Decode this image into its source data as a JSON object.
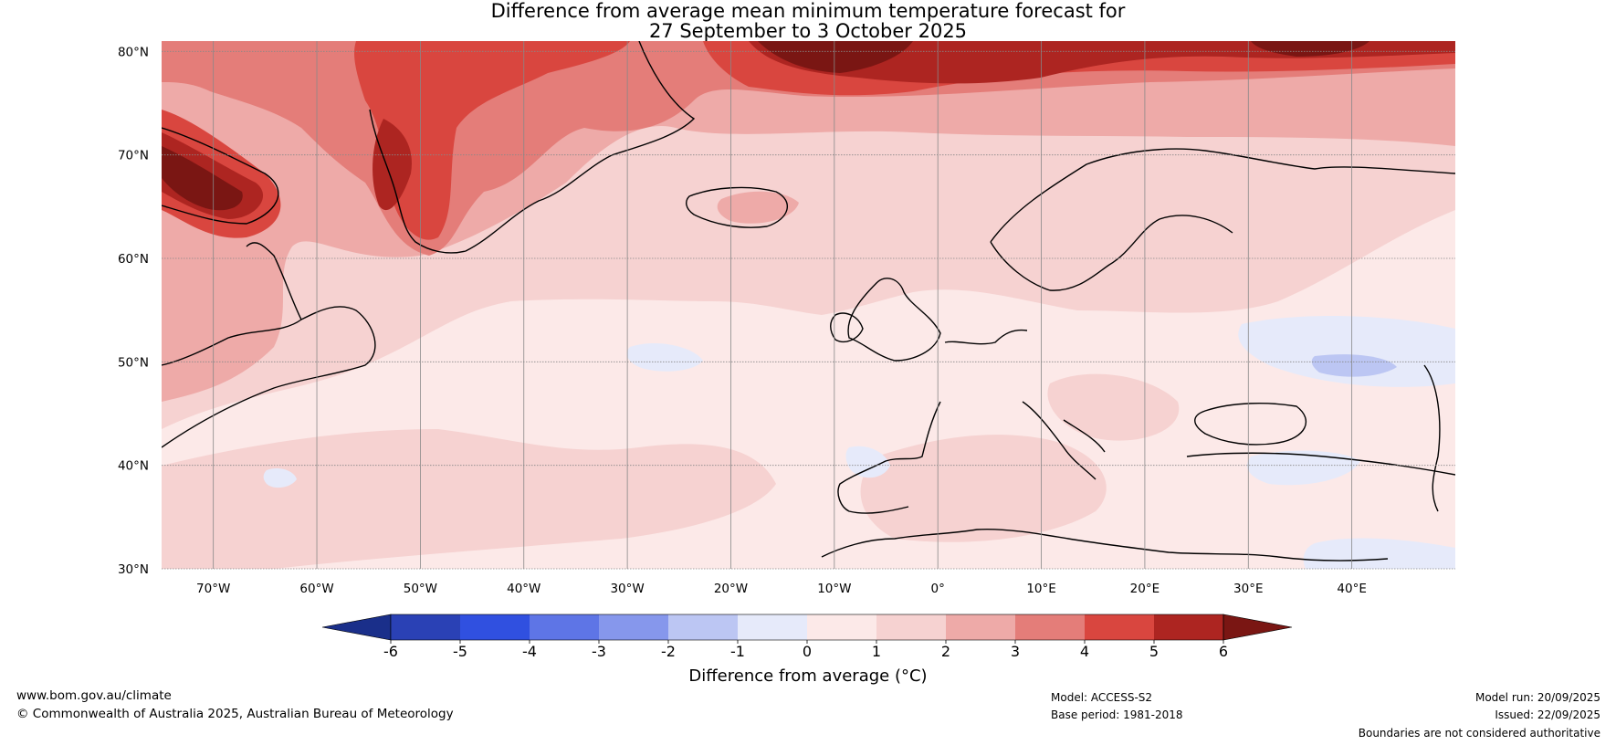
{
  "title": {
    "line1": "Difference from average mean minimum temperature forecast for",
    "line2": "27 September to 3 October 2025"
  },
  "map": {
    "lat_labels": [
      "80°N",
      "70°N",
      "60°N",
      "50°N",
      "40°N",
      "30°N"
    ],
    "lon_labels": [
      "70°W",
      "60°W",
      "50°W",
      "40°W",
      "30°W",
      "20°W",
      "10°W",
      "0°",
      "10°E",
      "20°E",
      "30°E",
      "40°E"
    ],
    "lat_range": [
      30,
      81
    ],
    "lon_range": [
      -75,
      50
    ]
  },
  "colorbar": {
    "ticks": [
      "-6",
      "-5",
      "-4",
      "-3",
      "-2",
      "-1",
      "0",
      "1",
      "2",
      "3",
      "4",
      "5",
      "6"
    ],
    "colors": [
      "#1a2f8a",
      "#2a41b5",
      "#3050e0",
      "#5e75e6",
      "#8697ec",
      "#bcc6f3",
      "#e6eafa",
      "#fce9e8",
      "#f6d2d1",
      "#eeaaa8",
      "#e47d79",
      "#d9463f",
      "#ad2521",
      "#7a1613"
    ],
    "label": "Difference from average (°C)"
  },
  "footer": {
    "website": "www.bom.gov.au/climate",
    "copyright": "© Commonwealth of Australia 2025, Australian Bureau of Meteorology",
    "model": "Model: ACCESS-S2",
    "base_period": "Base period: 1981-2018",
    "model_run": "Model run: 20/09/2025",
    "issued": "Issued: 22/09/2025",
    "disclaimer": "Boundaries are not considered authoritative"
  }
}
